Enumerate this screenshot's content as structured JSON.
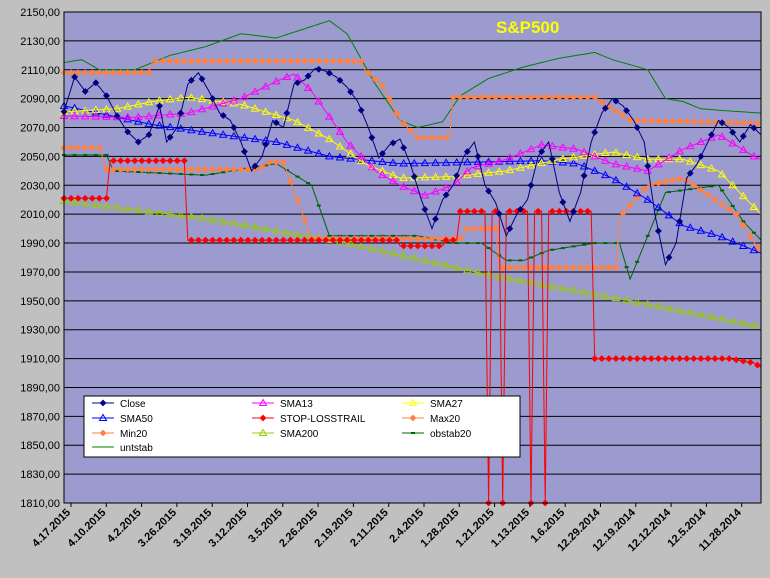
{
  "chart_data": {
    "type": "line",
    "title": "S&P500",
    "colors": {
      "page_background": "#c0c0c0",
      "plot_background": "#9b9bcf",
      "gridline": "#000000",
      "title": "#ffff00"
    },
    "y_range": [
      1810,
      2150
    ],
    "y_ticks": [
      "1810,00",
      "1830,00",
      "1850,00",
      "1870,00",
      "1890,00",
      "1910,00",
      "1930,00",
      "1950,00",
      "1970,00",
      "1990,00",
      "2010,00",
      "2030,00",
      "2050,00",
      "2070,00",
      "2090,00",
      "2110,00",
      "2130,00",
      "2150,00"
    ],
    "x_ticks": [
      "4.17.2015",
      "4.10.2015",
      "4.2.2015",
      "3.26.2015",
      "3.19.2015",
      "3.12.2015",
      "3.5.2015",
      "2.26.2015",
      "2.19.2015",
      "2.11.2015",
      "2.4.2015",
      "1.28.2015",
      "1.21.2015",
      "1.13.2015",
      "1.6.2015",
      "12.29.2014",
      "12.19.2014",
      "12.12.2014",
      "12.5.2014",
      "11.28.2014"
    ],
    "x_order": "newest date on the left, oldest on the right",
    "grid": true,
    "legend_placement": "bottom-left",
    "series": [
      {
        "name": "Close",
        "color": "#000080",
        "marker": "diamond",
        "anchors": [
          [
            0,
            2081
          ],
          [
            3,
            2105
          ],
          [
            6,
            2095
          ],
          [
            9,
            2101
          ],
          [
            12,
            2092
          ],
          [
            15,
            2078
          ],
          [
            18,
            2067
          ],
          [
            21,
            2060
          ],
          [
            24,
            2065
          ],
          [
            27,
            2085
          ],
          [
            29,
            2060
          ],
          [
            32,
            2070
          ],
          [
            35,
            2100
          ],
          [
            38,
            2108
          ],
          [
            41,
            2095
          ],
          [
            44,
            2080
          ],
          [
            47,
            2075
          ],
          [
            50,
            2060
          ],
          [
            53,
            2040
          ],
          [
            56,
            2050
          ],
          [
            59,
            2075
          ],
          [
            62,
            2070
          ],
          [
            65,
            2100
          ],
          [
            68,
            2103
          ],
          [
            71,
            2111
          ],
          [
            74,
            2109
          ],
          [
            77,
            2105
          ],
          [
            80,
            2098
          ],
          [
            83,
            2088
          ],
          [
            86,
            2070
          ],
          [
            89,
            2049
          ],
          [
            92,
            2058
          ],
          [
            95,
            2062
          ],
          [
            98,
            2044
          ],
          [
            101,
            2020
          ],
          [
            104,
            2000
          ],
          [
            107,
            2020
          ],
          [
            110,
            2030
          ],
          [
            113,
            2050
          ],
          [
            116,
            2060
          ],
          [
            119,
            2030
          ],
          [
            122,
            2018
          ],
          [
            125,
            1995
          ],
          [
            128,
            2010
          ],
          [
            131,
            2020
          ],
          [
            134,
            2050
          ],
          [
            137,
            2060
          ],
          [
            140,
            2025
          ],
          [
            143,
            2005
          ],
          [
            146,
            2025
          ],
          [
            149,
            2060
          ],
          [
            152,
            2080
          ],
          [
            155,
            2090
          ],
          [
            158,
            2085
          ],
          [
            161,
            2075
          ],
          [
            164,
            2060
          ],
          [
            167,
            2010
          ],
          [
            170,
            1975
          ],
          [
            173,
            1990
          ],
          [
            176,
            2035
          ],
          [
            179,
            2045
          ],
          [
            182,
            2060
          ],
          [
            185,
            2075
          ],
          [
            188,
            2070
          ],
          [
            191,
            2060
          ],
          [
            194,
            2072
          ],
          [
            197,
            2065
          ]
        ]
      },
      {
        "name": "SMA13",
        "color": "#ff00ff",
        "marker": "triangle",
        "anchors": [
          [
            0,
            2078
          ],
          [
            20,
            2077
          ],
          [
            35,
            2080
          ],
          [
            50,
            2090
          ],
          [
            60,
            2102
          ],
          [
            65,
            2107
          ],
          [
            70,
            2095
          ],
          [
            80,
            2060
          ],
          [
            88,
            2040
          ],
          [
            95,
            2030
          ],
          [
            102,
            2023
          ],
          [
            110,
            2030
          ],
          [
            115,
            2042
          ],
          [
            125,
            2048
          ],
          [
            135,
            2058
          ],
          [
            145,
            2055
          ],
          [
            155,
            2045
          ],
          [
            165,
            2040
          ],
          [
            175,
            2055
          ],
          [
            185,
            2065
          ],
          [
            195,
            2050
          ],
          [
            197,
            2048
          ]
        ]
      },
      {
        "name": "SMA27",
        "color": "#ffff00",
        "marker": "triangle",
        "anchors": [
          [
            0,
            2081
          ],
          [
            15,
            2083
          ],
          [
            25,
            2088
          ],
          [
            35,
            2091
          ],
          [
            50,
            2086
          ],
          [
            65,
            2075
          ],
          [
            75,
            2062
          ],
          [
            85,
            2045
          ],
          [
            95,
            2035
          ],
          [
            110,
            2036
          ],
          [
            125,
            2040
          ],
          [
            140,
            2048
          ],
          [
            155,
            2053
          ],
          [
            165,
            2048
          ],
          [
            175,
            2048
          ],
          [
            185,
            2040
          ],
          [
            197,
            2010
          ]
        ]
      },
      {
        "name": "SMA50",
        "color": "#0000ff",
        "marker": "triangle",
        "anchors": [
          [
            0,
            2085
          ],
          [
            25,
            2072
          ],
          [
            45,
            2065
          ],
          [
            60,
            2060
          ],
          [
            75,
            2050
          ],
          [
            95,
            2045
          ],
          [
            115,
            2046
          ],
          [
            135,
            2047
          ],
          [
            145,
            2045
          ],
          [
            155,
            2035
          ],
          [
            165,
            2020
          ],
          [
            175,
            2002
          ],
          [
            185,
            1995
          ],
          [
            197,
            1983
          ]
        ]
      },
      {
        "name": "STOP-LOSSTRAIL",
        "color": "#ff0000",
        "marker": "diamond",
        "anchors": [
          [
            0,
            2021
          ],
          [
            13,
            2021
          ],
          [
            13,
            2047
          ],
          [
            35,
            2047
          ],
          [
            35,
            1992
          ],
          [
            95,
            1992
          ],
          [
            95,
            1988
          ],
          [
            108,
            1988
          ],
          [
            108,
            1992
          ],
          [
            110,
            1992
          ],
          [
            112,
            1992
          ],
          [
            112,
            2012
          ],
          [
            120,
            2012
          ],
          [
            120,
            1810
          ],
          [
            121,
            1810
          ],
          [
            121,
            2012
          ],
          [
            124,
            2012
          ],
          [
            124,
            1810
          ],
          [
            125,
            1810
          ],
          [
            125,
            2012
          ],
          [
            132,
            2012
          ],
          [
            132,
            1810
          ],
          [
            133,
            1810
          ],
          [
            133,
            2012
          ],
          [
            136,
            2012
          ],
          [
            136,
            1810
          ],
          [
            137,
            1810
          ],
          [
            137,
            2012
          ],
          [
            150,
            2012
          ],
          [
            150,
            1910
          ],
          [
            188,
            1910
          ],
          [
            195,
            1907
          ],
          [
            197,
            1904
          ]
        ]
      },
      {
        "name": "Max20",
        "color": "#ff8040",
        "marker": "diamond",
        "anchors": [
          [
            0,
            2108
          ],
          [
            25,
            2108
          ],
          [
            25,
            2116
          ],
          [
            85,
            2116
          ],
          [
            85,
            2110
          ],
          [
            90,
            2099
          ],
          [
            95,
            2075
          ],
          [
            100,
            2063
          ],
          [
            110,
            2063
          ],
          [
            110,
            2091
          ],
          [
            150,
            2091
          ],
          [
            160,
            2075
          ],
          [
            197,
            2073
          ]
        ]
      },
      {
        "name": "Min20",
        "color": "#ff8040",
        "marker": "diamond",
        "anchors": [
          [
            0,
            2056
          ],
          [
            10,
            2056
          ],
          [
            12,
            2041
          ],
          [
            55,
            2041
          ],
          [
            58,
            2046
          ],
          [
            62,
            2046
          ],
          [
            70,
            1993
          ],
          [
            112,
            1993
          ],
          [
            114,
            2000
          ],
          [
            123,
            2000
          ],
          [
            123,
            1973
          ],
          [
            157,
            1973
          ],
          [
            157,
            2008
          ],
          [
            165,
            2030
          ],
          [
            175,
            2035
          ],
          [
            190,
            2010
          ],
          [
            197,
            1983
          ]
        ]
      },
      {
        "name": "SMA200",
        "color": "#99cc00",
        "marker": "triangle",
        "anchors": [
          [
            0,
            2019
          ],
          [
            40,
            2007
          ],
          [
            80,
            1990
          ],
          [
            120,
            1968
          ],
          [
            160,
            1950
          ],
          [
            197,
            1932
          ]
        ]
      },
      {
        "name": "obstab20",
        "color": "#006400",
        "marker": "dash",
        "anchors": [
          [
            0,
            2051
          ],
          [
            12,
            2051
          ],
          [
            14,
            2040
          ],
          [
            40,
            2037
          ],
          [
            60,
            2045
          ],
          [
            70,
            2030
          ],
          [
            75,
            1995
          ],
          [
            100,
            1995
          ],
          [
            110,
            1990
          ],
          [
            118,
            1990
          ],
          [
            125,
            1978
          ],
          [
            130,
            1978
          ],
          [
            137,
            1985
          ],
          [
            150,
            1990
          ],
          [
            157,
            1990
          ],
          [
            160,
            1965
          ],
          [
            170,
            2025
          ],
          [
            185,
            2030
          ],
          [
            192,
            2005
          ],
          [
            197,
            1992
          ]
        ]
      },
      {
        "name": "untstab",
        "color": "#008000",
        "marker": "none",
        "anchors": [
          [
            0,
            2115
          ],
          [
            5,
            2117
          ],
          [
            10,
            2110
          ],
          [
            20,
            2110
          ],
          [
            30,
            2120
          ],
          [
            40,
            2126
          ],
          [
            50,
            2135
          ],
          [
            60,
            2132
          ],
          [
            70,
            2140
          ],
          [
            75,
            2144
          ],
          [
            80,
            2135
          ],
          [
            88,
            2100
          ],
          [
            95,
            2075
          ],
          [
            100,
            2070
          ],
          [
            107,
            2074
          ],
          [
            112,
            2092
          ],
          [
            120,
            2104
          ],
          [
            130,
            2112
          ],
          [
            140,
            2118
          ],
          [
            150,
            2122
          ],
          [
            155,
            2117
          ],
          [
            165,
            2110
          ],
          [
            170,
            2090
          ],
          [
            175,
            2088
          ],
          [
            180,
            2083
          ],
          [
            185,
            2082
          ],
          [
            197,
            2080
          ]
        ]
      }
    ]
  }
}
